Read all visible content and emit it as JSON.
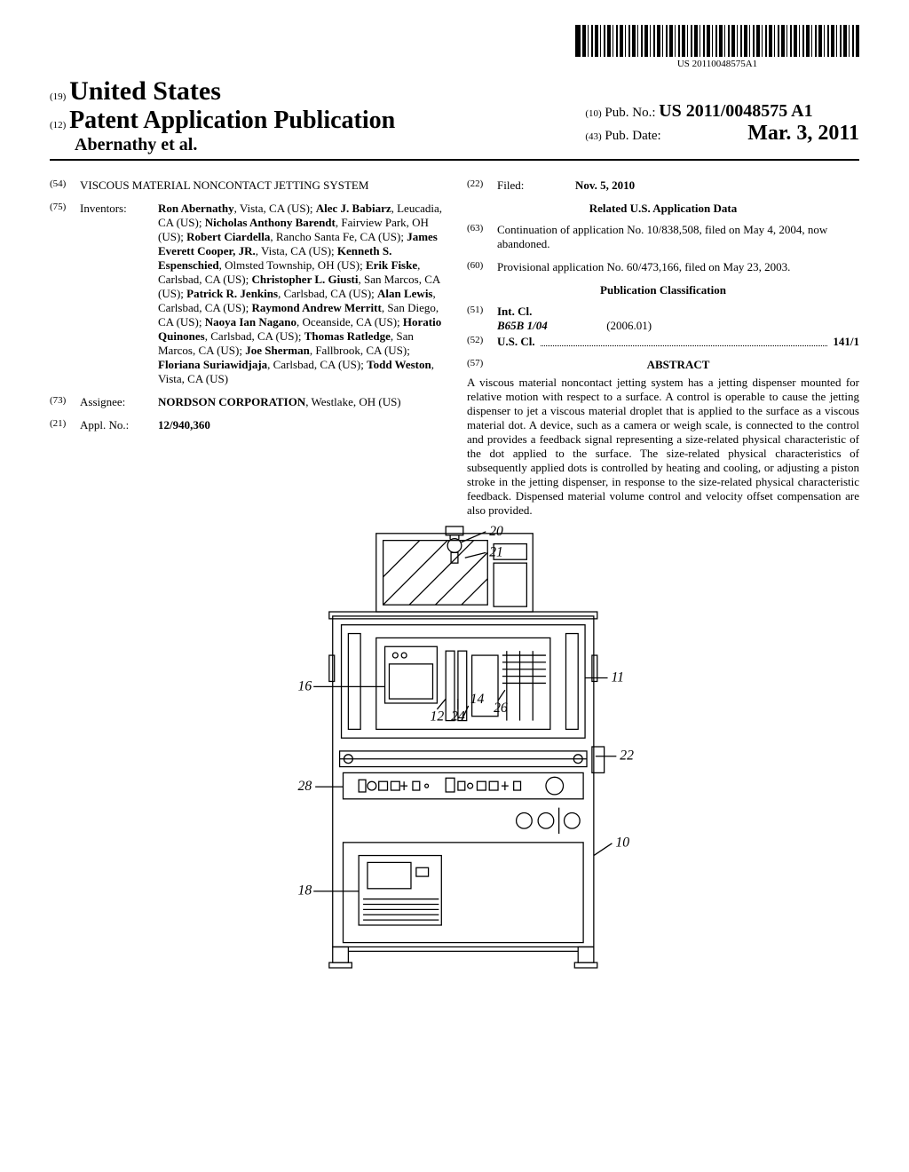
{
  "barcode": {
    "text": "US 20110048575A1"
  },
  "header": {
    "code19": "(19)",
    "country": "United States",
    "code12": "(12)",
    "pub_type": "Patent Application Publication",
    "author": "Abernathy et al.",
    "code10": "(10)",
    "pub_no_label": "Pub. No.:",
    "pub_no": "US 2011/0048575 A1",
    "code43": "(43)",
    "pub_date_label": "Pub. Date:",
    "pub_date": "Mar. 3, 2011"
  },
  "left": {
    "code54": "(54)",
    "title": "VISCOUS MATERIAL NONCONTACT JETTING SYSTEM",
    "code75": "(75)",
    "inventors_label": "Inventors:",
    "inventors": [
      {
        "name": "Ron Abernathy",
        "loc": ", Vista, CA (US); "
      },
      {
        "name": "Alec J. Babiarz",
        "loc": ", Leucadia, CA (US); "
      },
      {
        "name": "Nicholas Anthony Barendt",
        "loc": ", Fairview Park, OH (US); "
      },
      {
        "name": "Robert Ciardella",
        "loc": ", Rancho Santa Fe, CA (US); "
      },
      {
        "name": "James Everett Cooper, JR.",
        "loc": ", Vista, CA (US); "
      },
      {
        "name": "Kenneth S. Espenschied",
        "loc": ", Olmsted Township, OH (US); "
      },
      {
        "name": "Erik Fiske",
        "loc": ", Carlsbad, CA (US); "
      },
      {
        "name": "Christopher L. Giusti",
        "loc": ", San Marcos, CA (US); "
      },
      {
        "name": "Patrick R. Jenkins",
        "loc": ", Carlsbad, CA (US); "
      },
      {
        "name": "Alan Lewis",
        "loc": ", Carlsbad, CA (US); "
      },
      {
        "name": "Raymond Andrew Merritt",
        "loc": ", San Diego, CA (US); "
      },
      {
        "name": "Naoya Ian Nagano",
        "loc": ", Oceanside, CA (US); "
      },
      {
        "name": "Horatio Quinones",
        "loc": ", Carlsbad, CA (US); "
      },
      {
        "name": "Thomas Ratledge",
        "loc": ", San Marcos, CA (US); "
      },
      {
        "name": "Joe Sherman",
        "loc": ", Fallbrook, CA (US); "
      },
      {
        "name": "Floriana Suriawidjaja",
        "loc": ", Carlsbad, CA (US); "
      },
      {
        "name": "Todd Weston",
        "loc": ", Vista, CA (US)"
      }
    ],
    "code73": "(73)",
    "assignee_label": "Assignee:",
    "assignee_name": "NORDSON CORPORATION",
    "assignee_loc": ", Westlake, OH (US)",
    "code21": "(21)",
    "appl_label": "Appl. No.:",
    "appl_no": "12/940,360"
  },
  "right": {
    "code22": "(22)",
    "filed_label": "Filed:",
    "filed": "Nov. 5, 2010",
    "related_head": "Related U.S. Application Data",
    "code63": "(63)",
    "continuation": "Continuation of application No. 10/838,508, filed on May 4, 2004, now abandoned.",
    "code60": "(60)",
    "provisional": "Provisional application No. 60/473,166, filed on May 23, 2003.",
    "class_head": "Publication Classification",
    "code51": "(51)",
    "intcl_label": "Int. Cl.",
    "intcl_code": "B65B  1/04",
    "intcl_year": "(2006.01)",
    "code52": "(52)",
    "uscl_label": "U.S. Cl.",
    "uscl_val": "141/1",
    "code57": "(57)",
    "abstract_label": "ABSTRACT",
    "abstract": "A viscous material noncontact jetting system has a jetting dispenser mounted for relative motion with respect to a surface. A control is operable to cause the jetting dispenser to jet a viscous material droplet that is applied to the surface as a viscous material dot. A device, such as a camera or weigh scale, is connected to the control and provides a feedback signal representing a size-related physical characteristic of the dot applied to the surface. The size-related physical characteristics of subsequently applied dots is controlled by heating and cooling, or adjusting a piston stroke in the jetting dispenser, in response to the size-related physical characteristic feedback. Dispensed material volume control and velocity offset compensation are also provided."
  },
  "figure": {
    "labels": {
      "l20": "20",
      "l21": "21",
      "l11": "11",
      "l22": "22",
      "l10": "10",
      "l16": "16",
      "l14": "14",
      "l12": "12",
      "l24": "24",
      "l26": "26",
      "l28": "28",
      "l18": "18"
    }
  }
}
